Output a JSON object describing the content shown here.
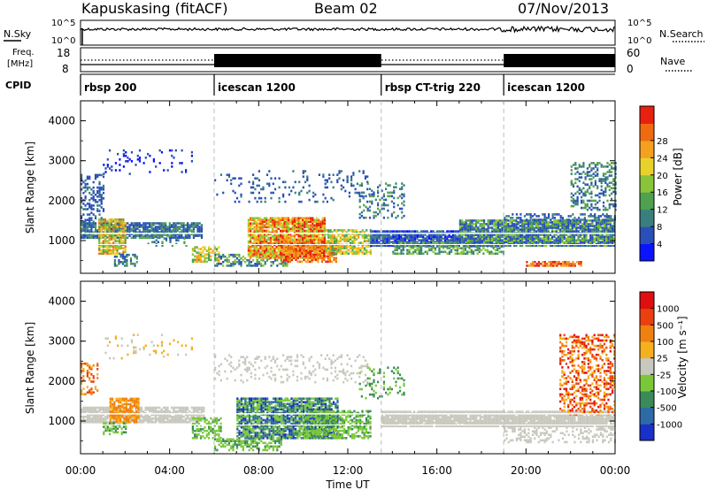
{
  "header": {
    "title": "Kapuskasing (fitACF)",
    "beam": "Beam 02",
    "date": "07/Nov/2013"
  },
  "top_panels": {
    "nsky_label": "N.Sky",
    "nsky_ticks": [
      "10^5",
      "10^0"
    ],
    "nsearch_label": "N.Search",
    "nsearch_ticks": [
      "10^5",
      "10^0"
    ],
    "freq_label_1": "Freq.",
    "freq_label_2": "[MHz]",
    "freq_ticks": [
      "18",
      "8"
    ],
    "nave_label": "Nave",
    "nave_ticks": [
      "60",
      "0"
    ],
    "cpid_label": "CPID"
  },
  "cpid_segments": [
    {
      "name": "rbsp 200",
      "start": 0,
      "end": 6
    },
    {
      "name": "icescan 1200",
      "start": 6,
      "end": 13.5
    },
    {
      "name": "rbsp CT-trig 220",
      "start": 13.5,
      "end": 19
    },
    {
      "name": "icescan 1200",
      "start": 19,
      "end": 24
    }
  ],
  "chart_data": [
    {
      "type": "heatmap",
      "ylabel": "Slant Range [km]",
      "xlabel": "Time UT",
      "xlim": [
        0,
        24
      ],
      "ylim": [
        180,
        4500
      ],
      "yticks": [
        "1000",
        "2000",
        "3000",
        "4000"
      ],
      "xticks": [
        "00:00",
        "04:00",
        "08:00",
        "12:00",
        "16:00",
        "20:00",
        "00:00"
      ],
      "colorbar": {
        "label": "Power [dB]",
        "ticks": [
          "4",
          "8",
          "12",
          "16",
          "20",
          "24",
          "28"
        ],
        "colors": [
          "#0a14ff",
          "#2a4fb8",
          "#3a7f7f",
          "#4fa04f",
          "#8ac43a",
          "#e8d22a",
          "#f5a020",
          "#f06a10",
          "#e82010"
        ]
      }
    },
    {
      "type": "heatmap",
      "ylabel": "Slant Range [km]",
      "xlabel": "Time UT",
      "xlim": [
        0,
        24
      ],
      "ylim": [
        180,
        4500
      ],
      "yticks": [
        "1000",
        "2000",
        "3000",
        "4000"
      ],
      "xticks": [
        "00:00",
        "04:00",
        "08:00",
        "12:00",
        "16:00",
        "20:00",
        "00:00"
      ],
      "colorbar": {
        "label": "Velocity [m s⁻¹]",
        "ticks": [
          "1000",
          "500",
          "100",
          "25",
          "-25",
          "-100",
          "-500",
          "-1000"
        ],
        "colors": [
          "#1a30c8",
          "#2e6aa8",
          "#3a8a5a",
          "#7ac83a",
          "#c8c8be",
          "#f5b020",
          "#f08010",
          "#ea4010",
          "#e00e0e"
        ]
      }
    }
  ],
  "time_axis_label": "Time UT"
}
